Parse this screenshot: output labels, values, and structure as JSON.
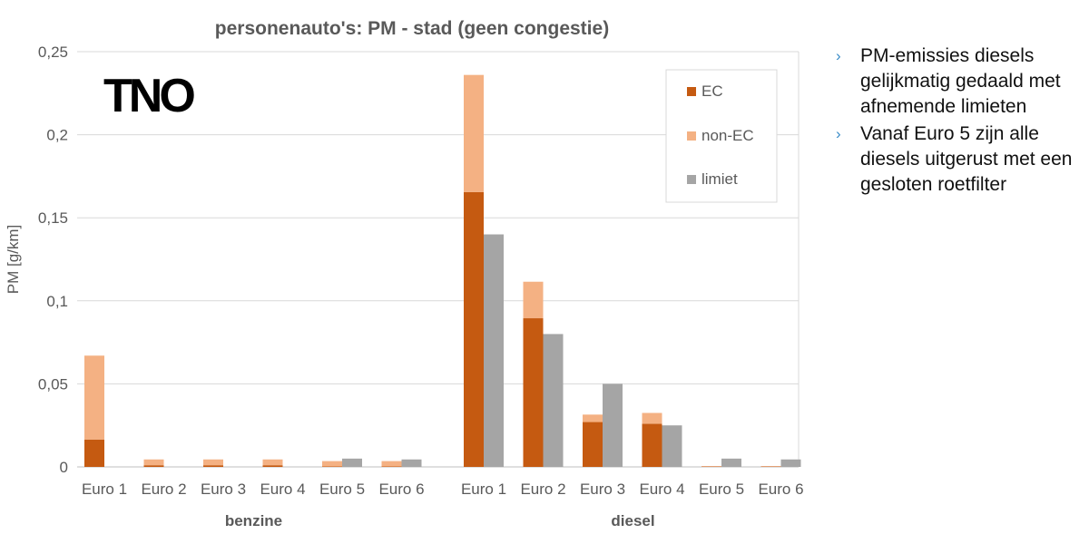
{
  "chart_data": {
    "type": "bar",
    "title": "personenauto's: PM - stad (geen congestie)",
    "ylabel": "PM [g/km]",
    "xlabel": "",
    "ylim": [
      0,
      0.25
    ],
    "yticks": [
      "0",
      "0,05",
      "0,1",
      "0,15",
      "0,2",
      "0,25"
    ],
    "ytick_values": [
      0,
      0.05,
      0.1,
      0.15,
      0.2,
      0.25
    ],
    "grid": true,
    "legend_position": "top-right",
    "groups": [
      {
        "name": "benzine",
        "categories": [
          "Euro 1",
          "Euro 2",
          "Euro 3",
          "Euro 4",
          "Euro 5",
          "Euro 6"
        ],
        "EC": [
          0.0165,
          0.001,
          0.001,
          0.001,
          0.0003,
          0.0003
        ],
        "non-EC": [
          0.0505,
          0.0035,
          0.0035,
          0.0035,
          0.0032,
          0.0032
        ],
        "limiet": [
          null,
          null,
          null,
          null,
          0.005,
          0.0045
        ]
      },
      {
        "name": "diesel",
        "categories": [
          "Euro 1",
          "Euro 2",
          "Euro 3",
          "Euro 4",
          "Euro 5",
          "Euro 6"
        ],
        "EC": [
          0.1655,
          0.0895,
          0.027,
          0.026,
          0.0002,
          0.0002
        ],
        "non-EC": [
          0.0705,
          0.022,
          0.0045,
          0.0065,
          0.0003,
          0.0003
        ],
        "limiet": [
          0.14,
          0.08,
          0.05,
          0.025,
          0.005,
          0.0045
        ]
      }
    ],
    "series": [
      {
        "name": "EC",
        "color": "#c55a11"
      },
      {
        "name": "non-EC",
        "color": "#f4b183"
      },
      {
        "name": "limiet",
        "color": "#a5a5a5"
      }
    ]
  },
  "logo": {
    "text": "TNO",
    "color": "#000000"
  },
  "bullets": {
    "marker": "›",
    "marker_color": "#3a8cc8",
    "items": [
      "PM-emissies diesels gelijkmatig gedaald met afnemende limieten",
      "Vanaf Euro 5 zijn alle diesels uitgerust met een gesloten roetfilter"
    ]
  }
}
